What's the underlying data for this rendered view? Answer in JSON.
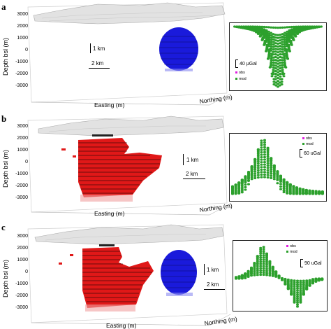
{
  "panels": [
    {
      "label": "a",
      "ylabel": "Depth bsl (m)",
      "yticks": [
        "3000",
        "2000",
        "1000",
        "0",
        "-1000",
        "-2000",
        "-3000"
      ],
      "xlabel": "Easting (m)",
      "zlabel": "Northing (m)",
      "scale_vertical": "1 km",
      "scale_horizontal": "2 km",
      "gravity_scale": "40 μGal",
      "legend": [
        "obs",
        "mod"
      ]
    },
    {
      "label": "b",
      "ylabel": "Depth bsl (m)",
      "yticks": [
        "3000",
        "2000",
        "1000",
        "0",
        "-1000",
        "-2000",
        "-3000"
      ],
      "xlabel": "Easting (m)",
      "zlabel": "Northing (m)",
      "scale_vertical": "1 km",
      "scale_horizontal": "2 km",
      "gravity_scale": "60 uGal",
      "legend": [
        "obs",
        "mod"
      ]
    },
    {
      "label": "c",
      "ylabel": "Depth bsl (m)",
      "yticks": [
        "3000",
        "2000",
        "1000",
        "0",
        "-1000",
        "-2000",
        "-3000"
      ],
      "xlabel": "Easting (m)",
      "zlabel": "Northing (m)",
      "scale_vertical": "1 km",
      "scale_horizontal": "2 km",
      "gravity_scale": "90 uGal",
      "legend": [
        "obs",
        "mod"
      ]
    }
  ],
  "colors": {
    "topography": "#d8d8d8",
    "spherical_body": "#1a1adb",
    "irregular_body": "#e01818",
    "data_points": "#2ca02c",
    "obs_marker": "#e020e0",
    "mod_marker": "#2ca02c"
  }
}
